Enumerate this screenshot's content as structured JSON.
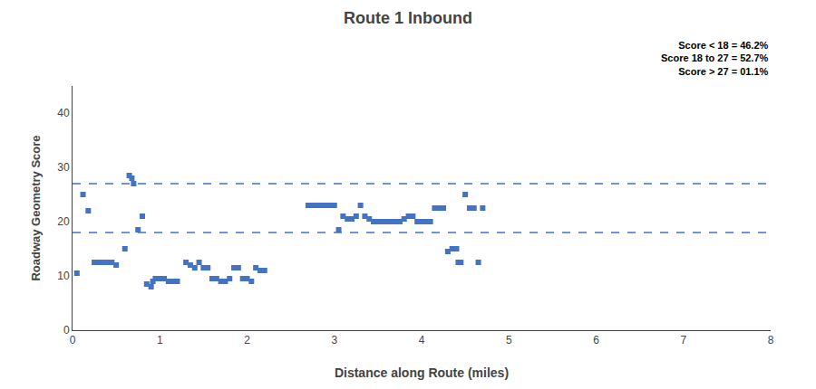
{
  "chart_data": {
    "type": "scatter",
    "title": "Route 1 Inbound",
    "xlabel": "Distance along Route (miles)",
    "ylabel": "Roadway Geometry Score",
    "annotations": [
      "Score < 18 = 46.2%",
      "Score 18 to 27 = 52.7%",
      "Score > 27 = 01.1%"
    ],
    "xlim": [
      0,
      8
    ],
    "ylim": [
      0,
      45
    ],
    "xticks": [
      0,
      1,
      2,
      3,
      4,
      5,
      6,
      7,
      8
    ],
    "yticks": [
      0,
      10,
      20,
      30,
      40
    ],
    "hlines": [
      18,
      27
    ],
    "color": "#4472C4",
    "marker": "square",
    "grid": false,
    "x": [
      0.05,
      0.12,
      0.18,
      0.25,
      0.3,
      0.35,
      0.4,
      0.45,
      0.5,
      0.6,
      0.65,
      0.68,
      0.7,
      0.75,
      0.8,
      0.85,
      0.9,
      0.92,
      0.95,
      1.0,
      1.05,
      1.1,
      1.15,
      1.2,
      1.3,
      1.35,
      1.4,
      1.45,
      1.5,
      1.55,
      1.6,
      1.65,
      1.7,
      1.75,
      1.8,
      1.85,
      1.9,
      1.95,
      2.0,
      2.05,
      2.1,
      2.15,
      2.2,
      2.7,
      2.75,
      2.8,
      2.85,
      2.9,
      2.95,
      3.0,
      3.05,
      3.1,
      3.15,
      3.2,
      3.25,
      3.3,
      3.35,
      3.4,
      3.45,
      3.5,
      3.55,
      3.6,
      3.65,
      3.7,
      3.75,
      3.8,
      3.85,
      3.9,
      3.95,
      4.0,
      4.05,
      4.1,
      4.15,
      4.2,
      4.25,
      4.3,
      4.35,
      4.4,
      4.42,
      4.45,
      4.5,
      4.55,
      4.6,
      4.65,
      4.7
    ],
    "values": [
      10.5,
      25,
      22,
      12.5,
      12.5,
      12.5,
      12.5,
      12.5,
      12,
      15,
      28.5,
      28,
      27,
      18.5,
      21,
      8.5,
      8,
      9,
      9.5,
      9.5,
      9.5,
      9,
      9,
      9,
      12.5,
      12,
      11.5,
      12.5,
      11.5,
      11.5,
      9.5,
      9.5,
      9,
      9,
      9.5,
      11.5,
      11.5,
      9.5,
      9.5,
      9,
      11.5,
      11,
      11,
      23,
      23,
      23,
      23,
      23,
      23,
      23,
      18.5,
      21,
      20.5,
      20.5,
      21,
      23,
      21,
      20.5,
      20,
      20,
      20,
      20,
      20,
      20,
      20,
      20.5,
      21,
      21,
      20,
      20,
      20,
      20,
      22.5,
      22.5,
      22.5,
      14.5,
      15,
      15,
      12.5,
      12.5,
      25,
      22.5,
      22.5,
      12.5,
      22.5
    ]
  }
}
